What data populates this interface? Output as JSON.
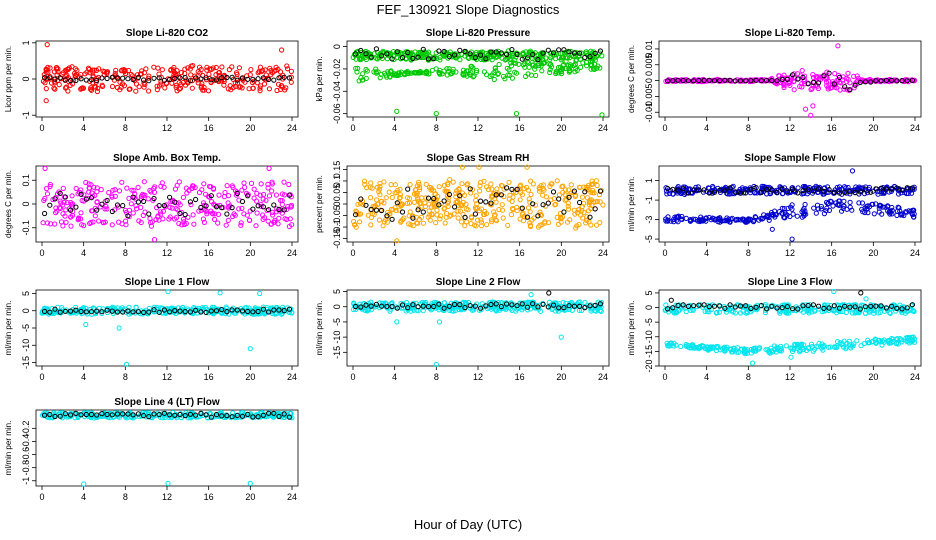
{
  "figure": {
    "title": "FEF_130921  Slope Diagnostics",
    "xlabel": "Hour of Day (UTC)"
  },
  "chart_data": [
    {
      "type": "scatter",
      "id": "co2",
      "title": "Slope Li-820 CO2",
      "ylabel": "Licor ppm per min.",
      "xlim": [
        0,
        24
      ],
      "ylim": [
        -1.05,
        1.05
      ],
      "yticks": [
        -1,
        0,
        1
      ],
      "xticks": [
        0,
        4,
        8,
        12,
        16,
        20,
        24
      ],
      "series": [
        {
          "name": "all",
          "color": "#ff0000",
          "band": [
            [
              0,
              -0.35,
              0.35
            ]
          ],
          "spread": 0.35,
          "count": 300,
          "outliers": [
            [
              0.5,
              0.95
            ],
            [
              0.4,
              -0.6
            ],
            [
              23.0,
              0.8
            ],
            [
              23.3,
              -0.3
            ]
          ]
        },
        {
          "name": "hourly",
          "color": "#000000",
          "band": [
            [
              0,
              -0.05,
              0.05
            ]
          ],
          "spread": 0.05,
          "count": 48
        }
      ]
    },
    {
      "type": "scatter",
      "id": "pressure",
      "title": "Slope Li-820 Pressure",
      "ylabel": "kPa per min.",
      "xlim": [
        0,
        24
      ],
      "ylim": [
        -0.063,
        0.005
      ],
      "yticks": [
        -0.06,
        -0.04,
        -0.02,
        0
      ],
      "xticks": [
        0,
        4,
        8,
        12,
        16,
        20,
        24
      ],
      "series": [
        {
          "name": "all-upper",
          "color": "#00c800",
          "band": [
            [
              0,
              -0.012,
              -0.004
            ]
          ],
          "spread": 0.006,
          "count": 300,
          "outliers": []
        },
        {
          "name": "all-lower",
          "color": "#00c800",
          "band": [
            [
              0,
              -0.018,
              -0.034
            ],
            [
              8,
              -0.025,
              -0.02
            ],
            [
              14,
              -0.03,
              -0.014
            ],
            [
              24,
              -0.02,
              -0.012
            ]
          ],
          "spread": 0.006,
          "count": 200,
          "outliers": [
            [
              4.2,
              -0.058
            ],
            [
              8.0,
              -0.06
            ],
            [
              15.7,
              -0.06
            ],
            [
              23.9,
              -0.061
            ]
          ]
        },
        {
          "name": "hourly",
          "color": "#000000",
          "band": [
            [
              0,
              -0.012,
              -0.002
            ]
          ],
          "spread": 0.006,
          "count": 48
        }
      ]
    },
    {
      "type": "scatter",
      "id": "temp",
      "title": "Slope Li-820 Temp.",
      "ylabel": "degrees C per min.",
      "xlim": [
        0,
        24
      ],
      "ylim": [
        -0.0115,
        0.0125
      ],
      "yticks": [
        -0.01,
        -0.005,
        0,
        0.005,
        0.01
      ],
      "xticks": [
        0,
        4,
        8,
        12,
        16,
        20,
        24
      ],
      "series": [
        {
          "name": "all",
          "color": "#ff00ff",
          "band": [
            [
              0,
              -0.0002,
              0.0002
            ],
            [
              10,
              -0.0002,
              0.0002
            ],
            [
              12,
              -0.003,
              0.003
            ],
            [
              18,
              -0.003,
              0.003
            ],
            [
              19,
              -0.0002,
              0.0002
            ],
            [
              24,
              -0.0002,
              0.0002
            ]
          ],
          "spread": 0.003,
          "count": 320,
          "outliers": [
            [
              13.5,
              -0.009
            ],
            [
              14.0,
              -0.011
            ],
            [
              16.6,
              0.011
            ],
            [
              14.2,
              -0.008
            ]
          ]
        },
        {
          "name": "hourly",
          "color": "#000000",
          "band": [
            [
              0,
              -0.0001,
              0.0001
            ],
            [
              11,
              -0.0001,
              0.0001
            ],
            [
              13,
              -0.003,
              0.003
            ],
            [
              18,
              -0.003,
              0.003
            ],
            [
              20,
              -0.0001,
              0.0001
            ],
            [
              24,
              -0.0001,
              0.0001
            ]
          ],
          "spread": 0.003,
          "count": 48
        }
      ]
    },
    {
      "type": "scatter",
      "id": "box",
      "title": "Slope Amb. Box Temp.",
      "ylabel": "degrees C per min.",
      "xlim": [
        0,
        24
      ],
      "ylim": [
        -0.16,
        0.16
      ],
      "yticks": [
        -0.1,
        0,
        0.1
      ],
      "xticks": [
        0,
        4,
        8,
        12,
        16,
        20,
        24
      ],
      "series": [
        {
          "name": "all",
          "color": "#ff00ff",
          "band": [
            [
              0,
              -0.09,
              0.09
            ]
          ],
          "spread": 0.09,
          "count": 320,
          "outliers": [
            [
              0.3,
              0.15
            ],
            [
              10.8,
              -0.15
            ],
            [
              21.8,
              0.15
            ]
          ]
        },
        {
          "name": "hourly",
          "color": "#000000",
          "band": [
            [
              0,
              -0.05,
              0.05
            ]
          ],
          "spread": 0.05,
          "count": 48
        }
      ]
    },
    {
      "type": "scatter",
      "id": "rh",
      "title": "Slope Gas Stream RH",
      "ylabel": "percent per min.",
      "xlim": [
        0,
        24
      ],
      "ylim": [
        -0.165,
        0.165
      ],
      "yticks": [
        -0.15,
        -0.1,
        -0.05,
        0,
        0.05,
        0.1,
        0.15
      ],
      "xticks": [
        0,
        4,
        8,
        12,
        16,
        20,
        24
      ],
      "series": [
        {
          "name": "all",
          "color": "#ffa500",
          "band": [
            [
              0,
              -0.1,
              0.1
            ]
          ],
          "spread": 0.1,
          "count": 420,
          "outliers": [
            [
              4.2,
              -0.16
            ],
            [
              10.5,
              0.16
            ],
            [
              12.1,
              0.16
            ],
            [
              16.7,
              0.16
            ]
          ]
        },
        {
          "name": "hourly",
          "color": "#000000",
          "band": [
            [
              0,
              -0.07,
              0.07
            ]
          ],
          "spread": 0.07,
          "count": 48
        }
      ]
    },
    {
      "type": "scatter",
      "id": "sample",
      "title": "Slope Sample Flow",
      "ylabel": "ml/min per min.",
      "xlim": [
        0,
        24
      ],
      "ylim": [
        -5.3,
        2.5
      ],
      "yticks": [
        -5,
        -3,
        -1,
        1
      ],
      "xticks": [
        0,
        4,
        8,
        12,
        16,
        20,
        24
      ],
      "series": [
        {
          "name": "all-upper",
          "color": "#0000cc",
          "band": [
            [
              0,
              -0.4,
              0.4
            ]
          ],
          "spread": 0.4,
          "count": 260,
          "outliers": [
            [
              18.0,
              2.0
            ]
          ]
        },
        {
          "name": "all-lower",
          "color": "#0000cc",
          "band": [
            [
              0,
              -3.2,
              -2.6
            ],
            [
              8,
              -3.3,
              -2.9
            ],
            [
              13,
              -2.8,
              -1.2
            ],
            [
              18,
              -2.2,
              -1.0
            ],
            [
              24,
              -2.8,
              -2.0
            ]
          ],
          "spread": 0.5,
          "count": 220,
          "outliers": [
            [
              12.2,
              -5.0
            ],
            [
              10.3,
              -4.0
            ]
          ]
        },
        {
          "name": "hourly",
          "color": "#000000",
          "band": [
            [
              0,
              -0.3,
              0.3
            ]
          ],
          "spread": 0.5,
          "count": 48
        }
      ]
    },
    {
      "type": "scatter",
      "id": "line1",
      "title": "Slope Line 1 Flow",
      "ylabel": "ml/min per min.",
      "xlim": [
        0,
        24
      ],
      "ylim": [
        -16,
        6
      ],
      "yticks": [
        -15,
        -10,
        -5,
        0,
        5
      ],
      "xticks": [
        0,
        4,
        8,
        12,
        16,
        20,
        24
      ],
      "series": [
        {
          "name": "all",
          "color": "#00e5ee",
          "band": [
            [
              0,
              -1,
              1
            ]
          ],
          "spread": 1,
          "count": 320,
          "outliers": [
            [
              4.2,
              -4
            ],
            [
              7.4,
              -5
            ],
            [
              8.1,
              -15.5
            ],
            [
              12.1,
              5.5
            ],
            [
              17.1,
              5.2
            ],
            [
              20.0,
              -11
            ],
            [
              20.9,
              5.0
            ]
          ]
        },
        {
          "name": "hourly",
          "color": "#000000",
          "band": [
            [
              0,
              -0.5,
              0.5
            ]
          ],
          "spread": 0.5,
          "count": 48
        }
      ]
    },
    {
      "type": "scatter",
      "id": "line2",
      "title": "Slope Line 2 Flow",
      "ylabel": "ml/min per min.",
      "xlim": [
        0,
        24
      ],
      "ylim": [
        -19.5,
        5.5
      ],
      "yticks": [
        -15,
        -10,
        -5,
        0,
        5
      ],
      "xticks": [
        0,
        4,
        8,
        12,
        16,
        20,
        24
      ],
      "series": [
        {
          "name": "all",
          "color": "#00e5ee",
          "band": [
            [
              0,
              -1.5,
              1.5
            ]
          ],
          "spread": 1.5,
          "count": 320,
          "outliers": [
            [
              8.0,
              -19
            ],
            [
              4.2,
              -5
            ],
            [
              8.3,
              -5
            ],
            [
              17.1,
              4.0
            ],
            [
              20.0,
              -10
            ]
          ]
        },
        {
          "name": "hourly",
          "color": "#000000",
          "band": [
            [
              0,
              -0.5,
              1.0
            ]
          ],
          "spread": 0.8,
          "count": 48,
          "outliers": [
            [
              18.8,
              4.5
            ]
          ]
        }
      ]
    },
    {
      "type": "scatter",
      "id": "line3",
      "title": "Slope Line 3 Flow",
      "ylabel": "ml/min per min.",
      "xlim": [
        0,
        24
      ],
      "ylim": [
        -20,
        6
      ],
      "yticks": [
        -20,
        -15,
        -10,
        -5,
        0,
        5
      ],
      "xticks": [
        0,
        4,
        8,
        12,
        16,
        20,
        24
      ],
      "series": [
        {
          "name": "all-upper",
          "color": "#00e5ee",
          "band": [
            [
              0,
              -2,
              1
            ]
          ],
          "spread": 1,
          "count": 260,
          "outliers": [
            [
              16.2,
              5.5
            ],
            [
              19.3,
              3.0
            ]
          ]
        },
        {
          "name": "all-lower",
          "color": "#00e5ee",
          "band": [
            [
              0,
              -13,
              -12
            ],
            [
              8,
              -16,
              -14
            ],
            [
              14,
              -15,
              -12
            ],
            [
              24,
              -12,
              -10
            ]
          ],
          "spread": 1.2,
          "count": 240,
          "outliers": [
            [
              8.4,
              -19
            ],
            [
              12.1,
              -17
            ]
          ]
        },
        {
          "name": "hourly",
          "color": "#000000",
          "band": [
            [
              0,
              -0.5,
              1
            ]
          ],
          "spread": 0.8,
          "count": 48,
          "outliers": [
            [
              0.6,
              2.5
            ],
            [
              18.8,
              5.0
            ]
          ]
        }
      ]
    },
    {
      "type": "scatter",
      "id": "line4",
      "title": "Slope Line 4 (LT) Flow",
      "ylabel": "ml/min per min.",
      "xlim": [
        0,
        24
      ],
      "ylim": [
        -1.08,
        0.08
      ],
      "yticks": [
        -1.0,
        -0.8,
        -0.6,
        -0.4,
        -0.2
      ],
      "xticks": [
        0,
        4,
        8,
        12,
        16,
        20,
        24
      ],
      "series": [
        {
          "name": "all",
          "color": "#00e5ee",
          "band": [
            [
              0,
              -0.04,
              0.04
            ]
          ],
          "spread": 0.04,
          "count": 300,
          "outliers": [
            [
              4.0,
              -1.05
            ],
            [
              12.1,
              -1.04
            ],
            [
              20.0,
              -1.04
            ]
          ]
        },
        {
          "name": "hourly",
          "color": "#000000",
          "band": [
            [
              0,
              -0.03,
              0.03
            ]
          ],
          "spread": 0.03,
          "count": 48
        }
      ]
    }
  ]
}
